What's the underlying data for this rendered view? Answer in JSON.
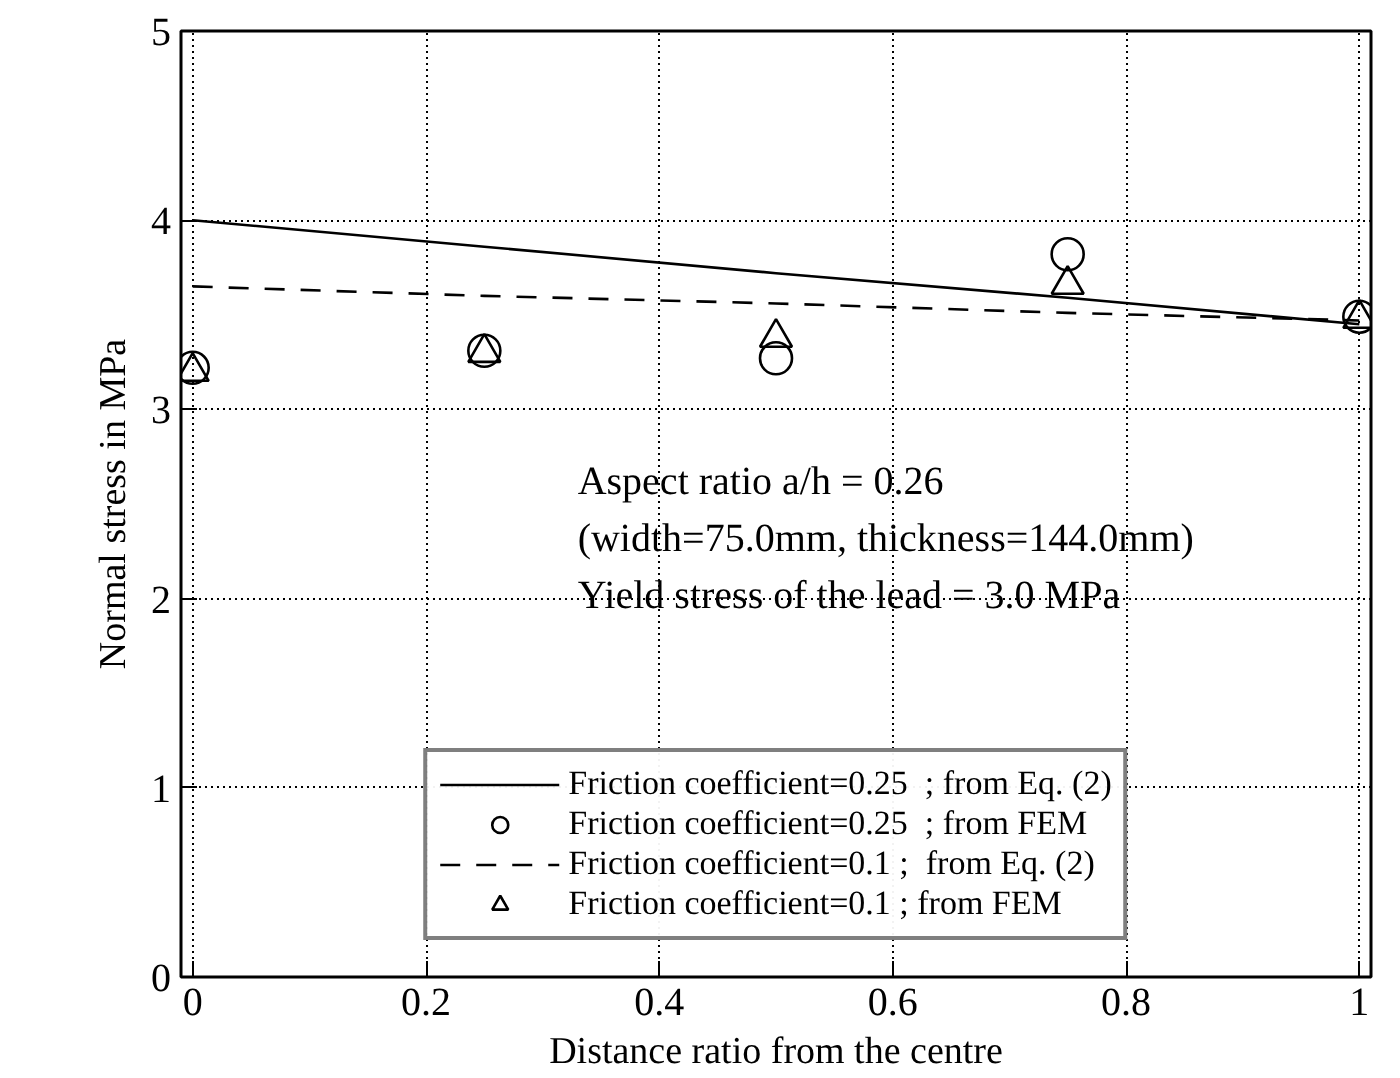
{
  "chart_data": {
    "type": "line",
    "xlabel": "Distance ratio from the centre",
    "ylabel": "Normal stress in MPa",
    "x": [
      0,
      0.25,
      0.5,
      0.75,
      1
    ],
    "series": [
      {
        "name": "Friction coefficient=0.25  ; from Eq. (2)",
        "color": "#000000",
        "line_style": "solid",
        "values": [
          4.0,
          3.86,
          3.72,
          3.59,
          3.45
        ]
      },
      {
        "name": "Friction coefficient=0.25  ; from FEM",
        "color": "#000000",
        "type": "scatter",
        "marker": "circle",
        "values": [
          3.22,
          3.31,
          3.27,
          3.82,
          3.49
        ]
      },
      {
        "name": "Friction coefficient=0.1 ;  from Eq. (2)",
        "color": "#000000",
        "line_style": "dashed",
        "values": [
          3.65,
          3.6,
          3.56,
          3.51,
          3.47
        ]
      },
      {
        "name": "Friction coefficient=0.1 ; from FEM",
        "color": "#000000",
        "type": "scatter",
        "marker": "triangle",
        "values": [
          3.2,
          3.3,
          3.38,
          3.66,
          3.48
        ]
      }
    ],
    "annotations": [
      "Aspect ratio a/h = 0.26",
      "(width=75.0mm, thickness=144.0mm)",
      "Yield stress of the lead = 3.0 MPa"
    ],
    "xlim": [
      -0.01,
      1.01
    ],
    "ylim": [
      0,
      5
    ],
    "xticks": [
      0,
      0.2,
      0.4,
      0.6,
      0.8,
      1
    ],
    "yticks": [
      0,
      1,
      2,
      3,
      4,
      5
    ],
    "grid": true,
    "legend": "bottom"
  }
}
